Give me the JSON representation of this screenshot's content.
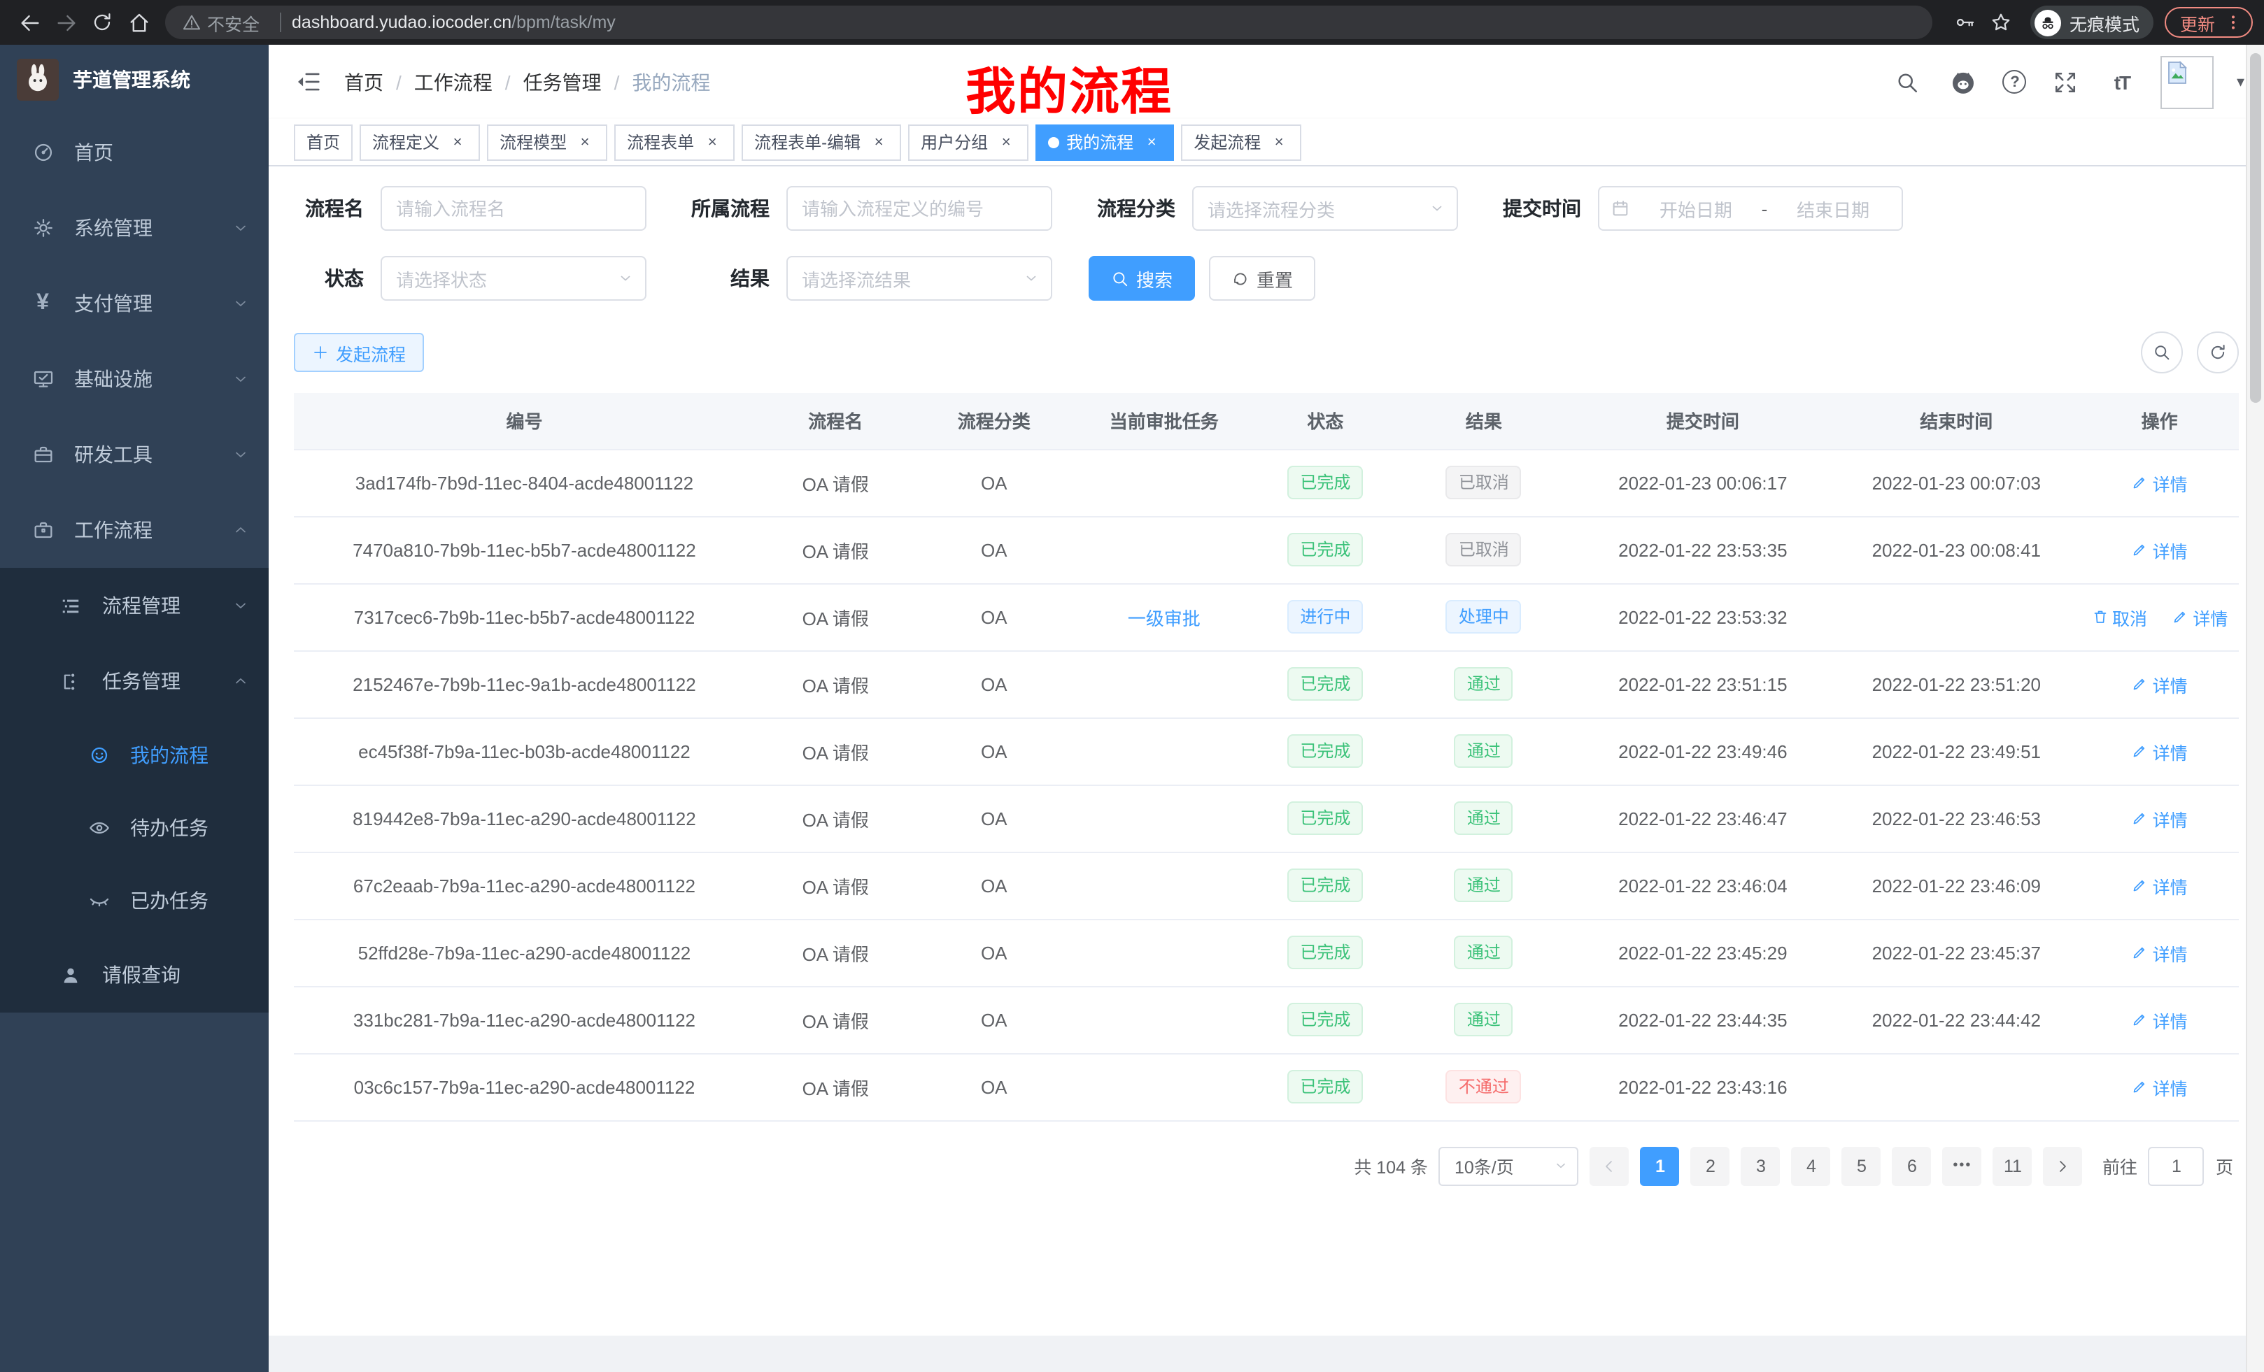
{
  "browser": {
    "security_label": "不安全",
    "url_host": "dashboard.yudao.iocoder.cn",
    "url_path": "/bpm/task/my",
    "incognito_label": "无痕模式",
    "update_label": "更新"
  },
  "annotation_text": "我的流程",
  "sidebar": {
    "app_title": "芋道管理系统",
    "menu": [
      {
        "label": "首页",
        "icon": "dashboard-icon"
      },
      {
        "label": "系统管理",
        "icon": "gear-icon"
      },
      {
        "label": "支付管理",
        "icon": "yen-icon"
      },
      {
        "label": "基础设施",
        "icon": "monitor-icon"
      },
      {
        "label": "研发工具",
        "icon": "toolbox-icon"
      },
      {
        "label": "工作流程",
        "icon": "briefcase-icon"
      }
    ],
    "workflow_children": [
      {
        "label": "流程管理",
        "icon": "list-icon"
      },
      {
        "label": "任务管理",
        "icon": "flow-icon"
      }
    ],
    "task_children": [
      {
        "label": "我的流程",
        "icon": "face-icon",
        "active": true
      },
      {
        "label": "待办任务",
        "icon": "eye-open-icon"
      },
      {
        "label": "已办任务",
        "icon": "eye-closed-icon"
      }
    ],
    "leave_query": {
      "label": "请假查询",
      "icon": "user-icon"
    }
  },
  "header": {
    "breadcrumb": [
      "首页",
      "工作流程",
      "任务管理",
      "我的流程"
    ]
  },
  "tabs": [
    {
      "label": "首页",
      "state": "normal",
      "closable": false
    },
    {
      "label": "流程定义",
      "state": "normal",
      "closable": true
    },
    {
      "label": "流程模型",
      "state": "normal",
      "closable": true
    },
    {
      "label": "流程表单",
      "state": "normal",
      "closable": true
    },
    {
      "label": "流程表单-编辑",
      "state": "normal",
      "closable": true
    },
    {
      "label": "用户分组",
      "state": "normal",
      "closable": true
    },
    {
      "label": "我的流程",
      "state": "active",
      "closable": true
    },
    {
      "label": "发起流程",
      "state": "normal",
      "closable": true
    }
  ],
  "filters": {
    "name_label": "流程名",
    "name_placeholder": "请输入流程名",
    "definition_label": "所属流程",
    "definition_placeholder": "请输入流程定义的编号",
    "category_label": "流程分类",
    "category_placeholder": "请选择流程分类",
    "time_label": "提交时间",
    "start_placeholder": "开始日期",
    "range_separator": "-",
    "end_placeholder": "结束日期",
    "status_label": "状态",
    "status_placeholder": "请选择状态",
    "result_label": "结果",
    "result_placeholder": "请选择流结果",
    "search_label": "搜索",
    "reset_label": "重置"
  },
  "toolbar": {
    "create_label": "发起流程"
  },
  "table": {
    "columns": [
      "编号",
      "流程名",
      "流程分类",
      "当前审批任务",
      "状态",
      "结果",
      "提交时间",
      "结束时间",
      "操作"
    ],
    "rows": [
      {
        "id": "3ad174fb-7b9d-11ec-8404-acde48001122",
        "name": "OA 请假",
        "category": "OA",
        "task": "",
        "status": "已完成",
        "status_type": "success",
        "result": "已取消",
        "result_type": "info",
        "submit": "2022-01-23 00:06:17",
        "end": "2022-01-23 00:07:03",
        "cancel": "",
        "detail": "详情"
      },
      {
        "id": "7470a810-7b9b-11ec-b5b7-acde48001122",
        "name": "OA 请假",
        "category": "OA",
        "task": "",
        "status": "已完成",
        "status_type": "success",
        "result": "已取消",
        "result_type": "info",
        "submit": "2022-01-22 23:53:35",
        "end": "2022-01-23 00:08:41",
        "cancel": "",
        "detail": "详情"
      },
      {
        "id": "7317cec6-7b9b-11ec-b5b7-acde48001122",
        "name": "OA 请假",
        "category": "OA",
        "task": "一级审批",
        "status": "进行中",
        "status_type": "primary",
        "result": "处理中",
        "result_type": "primary",
        "submit": "2022-01-22 23:53:32",
        "end": "",
        "cancel": "取消",
        "detail": "详情"
      },
      {
        "id": "2152467e-7b9b-11ec-9a1b-acde48001122",
        "name": "OA 请假",
        "category": "OA",
        "task": "",
        "status": "已完成",
        "status_type": "success",
        "result": "通过",
        "result_type": "success",
        "submit": "2022-01-22 23:51:15",
        "end": "2022-01-22 23:51:20",
        "cancel": "",
        "detail": "详情"
      },
      {
        "id": "ec45f38f-7b9a-11ec-b03b-acde48001122",
        "name": "OA 请假",
        "category": "OA",
        "task": "",
        "status": "已完成",
        "status_type": "success",
        "result": "通过",
        "result_type": "success",
        "submit": "2022-01-22 23:49:46",
        "end": "2022-01-22 23:49:51",
        "cancel": "",
        "detail": "详情"
      },
      {
        "id": "819442e8-7b9a-11ec-a290-acde48001122",
        "name": "OA 请假",
        "category": "OA",
        "task": "",
        "status": "已完成",
        "status_type": "success",
        "result": "通过",
        "result_type": "success",
        "submit": "2022-01-22 23:46:47",
        "end": "2022-01-22 23:46:53",
        "cancel": "",
        "detail": "详情"
      },
      {
        "id": "67c2eaab-7b9a-11ec-a290-acde48001122",
        "name": "OA 请假",
        "category": "OA",
        "task": "",
        "status": "已完成",
        "status_type": "success",
        "result": "通过",
        "result_type": "success",
        "submit": "2022-01-22 23:46:04",
        "end": "2022-01-22 23:46:09",
        "cancel": "",
        "detail": "详情"
      },
      {
        "id": "52ffd28e-7b9a-11ec-a290-acde48001122",
        "name": "OA 请假",
        "category": "OA",
        "task": "",
        "status": "已完成",
        "status_type": "success",
        "result": "通过",
        "result_type": "success",
        "submit": "2022-01-22 23:45:29",
        "end": "2022-01-22 23:45:37",
        "cancel": "",
        "detail": "详情"
      },
      {
        "id": "331bc281-7b9a-11ec-a290-acde48001122",
        "name": "OA 请假",
        "category": "OA",
        "task": "",
        "status": "已完成",
        "status_type": "success",
        "result": "通过",
        "result_type": "success",
        "submit": "2022-01-22 23:44:35",
        "end": "2022-01-22 23:44:42",
        "cancel": "",
        "detail": "详情"
      },
      {
        "id": "03c6c157-7b9a-11ec-a290-acde48001122",
        "name": "OA 请假",
        "category": "OA",
        "task": "",
        "status": "已完成",
        "status_type": "success",
        "result": "不通过",
        "result_type": "danger",
        "submit": "2022-01-22 23:43:16",
        "end": "",
        "cancel": "",
        "detail": "详情"
      }
    ]
  },
  "pagination": {
    "total_text": "共 104 条",
    "page_size_value": "10条/页",
    "pages": [
      {
        "label": "1",
        "state": "active"
      },
      {
        "label": "2",
        "state": "normal"
      },
      {
        "label": "3",
        "state": "normal"
      },
      {
        "label": "4",
        "state": "normal"
      },
      {
        "label": "5",
        "state": "normal"
      },
      {
        "label": "6",
        "state": "normal"
      },
      {
        "label": "•••",
        "state": "more"
      },
      {
        "label": "11",
        "state": "normal"
      }
    ],
    "goto_label": "前往",
    "goto_value": "1",
    "page_suffix": "页"
  },
  "colors": {
    "accent": "#409eff",
    "success": "#3bc279",
    "info": "#909399",
    "danger": "#f56c6c",
    "sidebar_bg": "#304156",
    "submenu_bg": "#1f2d3d",
    "annotation": "#ff0000",
    "update_pill": "#f28b82"
  }
}
